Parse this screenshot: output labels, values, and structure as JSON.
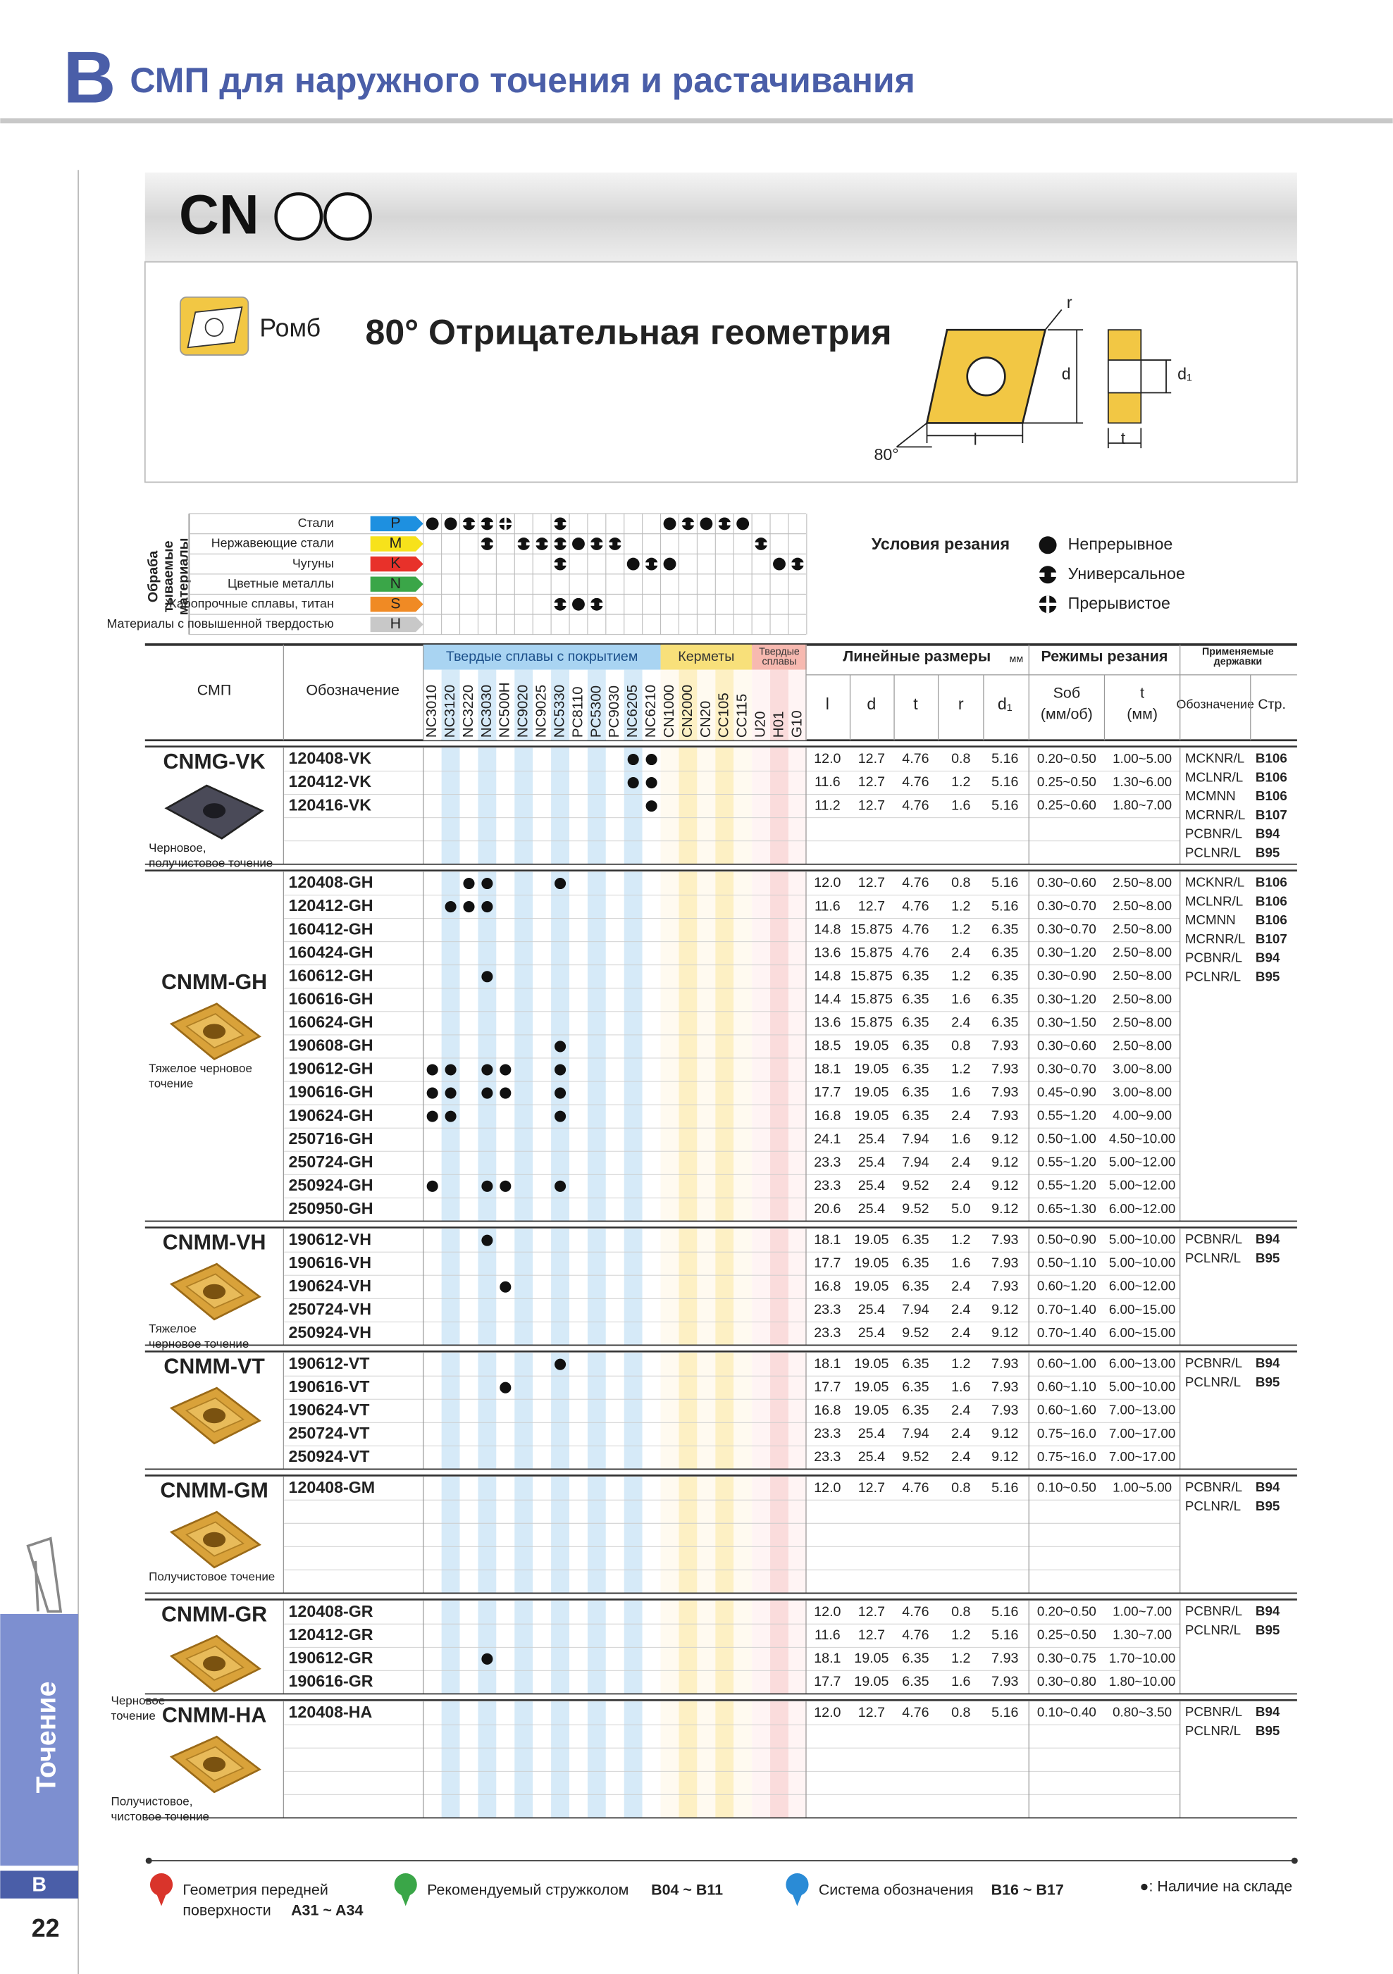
{
  "header": {
    "section": "B",
    "title": "СМП для наружного точения и растачивания"
  },
  "banner": "CN",
  "shape": {
    "name": "Ромб",
    "title": "80° Отрицательная геометрия",
    "labels": {
      "r": "r",
      "d": "d",
      "d1": "d₁",
      "l": "l",
      "t": "t",
      "angle": "80°"
    }
  },
  "materials": {
    "label": [
      "Обраба",
      "тываемые",
      "материалы"
    ],
    "rows": [
      {
        "name": "Стали",
        "code": "P",
        "cells": [
          0,
          0,
          1,
          1,
          2,
          null,
          null,
          1,
          null,
          null,
          null,
          null,
          null,
          0,
          1,
          0,
          1,
          0,
          null,
          null,
          null
        ]
      },
      {
        "name": "Нержавеющие стали",
        "code": "M",
        "cells": [
          null,
          null,
          null,
          1,
          null,
          1,
          1,
          1,
          0,
          1,
          1,
          null,
          null,
          null,
          null,
          null,
          null,
          null,
          1,
          null,
          null
        ]
      },
      {
        "name": "Чугуны",
        "code": "K",
        "cells": [
          null,
          null,
          null,
          null,
          null,
          null,
          null,
          1,
          null,
          null,
          null,
          0,
          1,
          0,
          null,
          null,
          null,
          null,
          null,
          0,
          1
        ]
      },
      {
        "name": "Цветные металлы",
        "code": "N",
        "cells": [
          null,
          null,
          null,
          null,
          null,
          null,
          null,
          null,
          null,
          null,
          null,
          null,
          null,
          null,
          null,
          null,
          null,
          null,
          null,
          null,
          null
        ]
      },
      {
        "name": "Жаропрочные сплавы, титан",
        "code": "S",
        "cells": [
          null,
          null,
          null,
          null,
          null,
          null,
          null,
          1,
          0,
          1,
          null,
          null,
          null,
          null,
          null,
          null,
          null,
          null,
          null,
          null,
          null
        ]
      },
      {
        "name": "Материалы с повышенной твердостью",
        "code": "H",
        "cells": [
          null,
          null,
          null,
          null,
          null,
          null,
          null,
          null,
          null,
          null,
          null,
          null,
          null,
          null,
          null,
          null,
          null,
          null,
          null,
          null,
          null
        ]
      }
    ]
  },
  "conditions": {
    "title": "Условия резания",
    "items": [
      "Непрерывное",
      "Универсальное",
      "Прерывистое"
    ]
  },
  "table": {
    "headers": {
      "insert": "СМП",
      "designation": "Обозначение",
      "linear": "Линейные размеры",
      "unit": "мм",
      "cutting": "Режимы резания",
      "holders": [
        "Применяемые",
        "державки"
      ],
      "dims": [
        "l",
        "d",
        "t",
        "r",
        "d₁"
      ],
      "feed": [
        "Sоб",
        "(мм/об)"
      ],
      "depth": [
        "t",
        "(мм)"
      ],
      "holder_code": "Обозначение",
      "holder_page": "Стр."
    },
    "grade_groups": [
      {
        "label": [
          "Твердые сплавы с покрытием"
        ],
        "grades": [
          "NC3010",
          "NC3120",
          "NC3220",
          "NC3030",
          "NC500H",
          "NC9020",
          "NC9025",
          "NC5330",
          "PC8110",
          "PC5300",
          "PC9030",
          "NC6205",
          "NC6210"
        ]
      },
      {
        "label": [
          "Керметы"
        ],
        "grades": [
          "CN1000",
          "CN2000",
          "CN20",
          "CC105",
          "CC115"
        ]
      },
      {
        "label": [
          "Твердые",
          "сплавы"
        ],
        "grades": [
          "U20",
          "H01",
          "G10"
        ]
      }
    ],
    "groups": [
      {
        "name": "CNMG-VK",
        "caption": [
          "Черновое,",
          "получистовое точение"
        ],
        "rows": [
          {
            "code": "120408-VK",
            "stock": [
              "NC6205",
              "NC6210"
            ],
            "dims": [
              "12.0",
              "12.7",
              "4.76",
              "0.8",
              "5.16"
            ],
            "feed": "0.20~0.50",
            "depth": "1.00~5.00"
          },
          {
            "code": "120412-VK",
            "stock": [
              "NC6205",
              "NC6210"
            ],
            "dims": [
              "11.6",
              "12.7",
              "4.76",
              "1.2",
              "5.16"
            ],
            "feed": "0.25~0.50",
            "depth": "1.30~6.00"
          },
          {
            "code": "120416-VK",
            "stock": [
              "NC6210"
            ],
            "dims": [
              "11.2",
              "12.7",
              "4.76",
              "1.6",
              "5.16"
            ],
            "feed": "0.25~0.60",
            "depth": "1.80~7.00"
          }
        ],
        "holders": [
          {
            "code": "MCKNR/L",
            "page": "B106"
          },
          {
            "code": "MCLNR/L",
            "page": "B106"
          },
          {
            "code": "MCMNN",
            "page": "B106"
          },
          {
            "code": "MCRNR/L",
            "page": "B107"
          },
          {
            "code": "PCBNR/L",
            "page": "B94"
          },
          {
            "code": "PCLNR/L",
            "page": "B95"
          }
        ]
      },
      {
        "name": "CNMM-GH",
        "caption": [
          "Тяжелое черновое",
          "точение"
        ],
        "rows": [
          {
            "code": "120408-GH",
            "stock": [
              "NC3220",
              "NC3030",
              "NC5330"
            ],
            "dims": [
              "12.0",
              "12.7",
              "4.76",
              "0.8",
              "5.16"
            ],
            "feed": "0.30~0.60",
            "depth": "2.50~8.00"
          },
          {
            "code": "120412-GH",
            "stock": [
              "NC3120",
              "NC3220",
              "NC3030"
            ],
            "dims": [
              "11.6",
              "12.7",
              "4.76",
              "1.2",
              "5.16"
            ],
            "feed": "0.30~0.70",
            "depth": "2.50~8.00"
          },
          {
            "code": "160412-GH",
            "stock": [],
            "dims": [
              "14.8",
              "15.875",
              "4.76",
              "1.2",
              "6.35"
            ],
            "feed": "0.30~0.70",
            "depth": "2.50~8.00"
          },
          {
            "code": "160424-GH",
            "stock": [],
            "dims": [
              "13.6",
              "15.875",
              "4.76",
              "2.4",
              "6.35"
            ],
            "feed": "0.30~1.20",
            "depth": "2.50~8.00"
          },
          {
            "code": "160612-GH",
            "stock": [
              "NC3030"
            ],
            "dims": [
              "14.8",
              "15.875",
              "6.35",
              "1.2",
              "6.35"
            ],
            "feed": "0.30~0.90",
            "depth": "2.50~8.00"
          },
          {
            "code": "160616-GH",
            "stock": [],
            "dims": [
              "14.4",
              "15.875",
              "6.35",
              "1.6",
              "6.35"
            ],
            "feed": "0.30~1.20",
            "depth": "2.50~8.00"
          },
          {
            "code": "160624-GH",
            "stock": [],
            "dims": [
              "13.6",
              "15.875",
              "6.35",
              "2.4",
              "6.35"
            ],
            "feed": "0.30~1.50",
            "depth": "2.50~8.00"
          },
          {
            "code": "190608-GH",
            "stock": [
              "NC5330"
            ],
            "dims": [
              "18.5",
              "19.05",
              "6.35",
              "0.8",
              "7.93"
            ],
            "feed": "0.30~0.60",
            "depth": "2.50~8.00"
          },
          {
            "code": "190612-GH",
            "stock": [
              "NC3010",
              "NC3120",
              "NC3030",
              "NC500H",
              "NC5330"
            ],
            "dims": [
              "18.1",
              "19.05",
              "6.35",
              "1.2",
              "7.93"
            ],
            "feed": "0.30~0.70",
            "depth": "3.00~8.00"
          },
          {
            "code": "190616-GH",
            "stock": [
              "NC3010",
              "NC3120",
              "NC3030",
              "NC500H",
              "NC5330"
            ],
            "dims": [
              "17.7",
              "19.05",
              "6.35",
              "1.6",
              "7.93"
            ],
            "feed": "0.45~0.90",
            "depth": "3.00~8.00"
          },
          {
            "code": "190624-GH",
            "stock": [
              "NC3010",
              "NC3120",
              "NC5330"
            ],
            "dims": [
              "16.8",
              "19.05",
              "6.35",
              "2.4",
              "7.93"
            ],
            "feed": "0.55~1.20",
            "depth": "4.00~9.00"
          },
          {
            "code": "250716-GH",
            "stock": [],
            "dims": [
              "24.1",
              "25.4",
              "7.94",
              "1.6",
              "9.12"
            ],
            "feed": "0.50~1.00",
            "depth": "4.50~10.00"
          },
          {
            "code": "250724-GH",
            "stock": [],
            "dims": [
              "23.3",
              "25.4",
              "7.94",
              "2.4",
              "9.12"
            ],
            "feed": "0.55~1.20",
            "depth": "5.00~12.00"
          },
          {
            "code": "250924-GH",
            "stock": [
              "NC3010",
              "NC3030",
              "NC500H",
              "NC5330"
            ],
            "dims": [
              "23.3",
              "25.4",
              "9.52",
              "2.4",
              "9.12"
            ],
            "feed": "0.55~1.20",
            "depth": "5.00~12.00"
          },
          {
            "code": "250950-GH",
            "stock": [],
            "dims": [
              "20.6",
              "25.4",
              "9.52",
              "5.0",
              "9.12"
            ],
            "feed": "0.65~1.30",
            "depth": "6.00~12.00"
          }
        ],
        "holders": [
          {
            "code": "MCKNR/L",
            "page": "B106"
          },
          {
            "code": "MCLNR/L",
            "page": "B106"
          },
          {
            "code": "MCMNN",
            "page": "B106"
          },
          {
            "code": "MCRNR/L",
            "page": "B107"
          },
          {
            "code": "PCBNR/L",
            "page": "B94"
          },
          {
            "code": "PCLNR/L",
            "page": "B95"
          }
        ]
      },
      {
        "name": "CNMM-VH",
        "caption": [
          "Тяжелое",
          "черновое точение"
        ],
        "rows": [
          {
            "code": "190612-VH",
            "stock": [
              "NC3030"
            ],
            "dims": [
              "18.1",
              "19.05",
              "6.35",
              "1.2",
              "7.93"
            ],
            "feed": "0.50~0.90",
            "depth": "5.00~10.00"
          },
          {
            "code": "190616-VH",
            "stock": [],
            "dims": [
              "17.7",
              "19.05",
              "6.35",
              "1.6",
              "7.93"
            ],
            "feed": "0.50~1.10",
            "depth": "5.00~10.00"
          },
          {
            "code": "190624-VH",
            "stock": [
              "NC500H"
            ],
            "dims": [
              "16.8",
              "19.05",
              "6.35",
              "2.4",
              "7.93"
            ],
            "feed": "0.60~1.20",
            "depth": "6.00~12.00"
          },
          {
            "code": "250724-VH",
            "stock": [],
            "dims": [
              "23.3",
              "25.4",
              "7.94",
              "2.4",
              "9.12"
            ],
            "feed": "0.70~1.40",
            "depth": "6.00~15.00"
          },
          {
            "code": "250924-VH",
            "stock": [],
            "dims": [
              "23.3",
              "25.4",
              "9.52",
              "2.4",
              "9.12"
            ],
            "feed": "0.70~1.40",
            "depth": "6.00~15.00"
          }
        ],
        "holders": [
          {
            "code": "PCBNR/L",
            "page": "B94"
          },
          {
            "code": "PCLNR/L",
            "page": "B95"
          }
        ]
      },
      {
        "name": "CNMM-VT",
        "caption": [],
        "rows": [
          {
            "code": "190612-VT",
            "stock": [
              "NC5330"
            ],
            "dims": [
              "18.1",
              "19.05",
              "6.35",
              "1.2",
              "7.93"
            ],
            "feed": "0.60~1.00",
            "depth": "6.00~13.00"
          },
          {
            "code": "190616-VT",
            "stock": [
              "NC500H"
            ],
            "dims": [
              "17.7",
              "19.05",
              "6.35",
              "1.6",
              "7.93"
            ],
            "feed": "0.60~1.10",
            "depth": "5.00~10.00"
          },
          {
            "code": "190624-VT",
            "stock": [],
            "dims": [
              "16.8",
              "19.05",
              "6.35",
              "2.4",
              "7.93"
            ],
            "feed": "0.60~1.60",
            "depth": "7.00~13.00"
          },
          {
            "code": "250724-VT",
            "stock": [],
            "dims": [
              "23.3",
              "25.4",
              "7.94",
              "2.4",
              "9.12"
            ],
            "feed": "0.75~16.0",
            "depth": "7.00~17.00"
          },
          {
            "code": "250924-VT",
            "stock": [],
            "dims": [
              "23.3",
              "25.4",
              "9.52",
              "2.4",
              "9.12"
            ],
            "feed": "0.75~16.0",
            "depth": "7.00~17.00"
          }
        ],
        "holders": [
          {
            "code": "PCBNR/L",
            "page": "B94"
          },
          {
            "code": "PCLNR/L",
            "page": "B95"
          }
        ]
      },
      {
        "name": "CNMM-GM",
        "caption": [
          "Получистовое точение"
        ],
        "rows": [
          {
            "code": "120408-GM",
            "stock": [],
            "dims": [
              "12.0",
              "12.7",
              "4.76",
              "0.8",
              "5.16"
            ],
            "feed": "0.10~0.50",
            "depth": "1.00~5.00"
          }
        ],
        "holders": [
          {
            "code": "PCBNR/L",
            "page": "B94"
          },
          {
            "code": "PCLNR/L",
            "page": "B95"
          }
        ]
      },
      {
        "name": "CNMM-GR",
        "caption": [
          "Черновое",
          "точение"
        ],
        "rows": [
          {
            "code": "120408-GR",
            "stock": [],
            "dims": [
              "12.0",
              "12.7",
              "4.76",
              "0.8",
              "5.16"
            ],
            "feed": "0.20~0.50",
            "depth": "1.00~7.00"
          },
          {
            "code": "120412-GR",
            "stock": [],
            "dims": [
              "11.6",
              "12.7",
              "4.76",
              "1.2",
              "5.16"
            ],
            "feed": "0.25~0.50",
            "depth": "1.30~7.00"
          },
          {
            "code": "190612-GR",
            "stock": [
              "NC3030"
            ],
            "dims": [
              "18.1",
              "19.05",
              "6.35",
              "1.2",
              "7.93"
            ],
            "feed": "0.30~0.75",
            "depth": "1.70~10.00"
          },
          {
            "code": "190616-GR",
            "stock": [],
            "dims": [
              "17.7",
              "19.05",
              "6.35",
              "1.6",
              "7.93"
            ],
            "feed": "0.30~0.80",
            "depth": "1.80~10.00"
          }
        ],
        "holders": [
          {
            "code": "PCBNR/L",
            "page": "B94"
          },
          {
            "code": "PCLNR/L",
            "page": "B95"
          }
        ]
      },
      {
        "name": "CNMM-HA",
        "caption": [
          "Получистовое,",
          "чистовое точение"
        ],
        "rows": [
          {
            "code": "120408-HA",
            "stock": [],
            "dims": [
              "12.0",
              "12.7",
              "4.76",
              "0.8",
              "5.16"
            ],
            "feed": "0.10~0.40",
            "depth": "0.80~3.50"
          }
        ],
        "holders": [
          {
            "code": "PCBNR/L",
            "page": "B94"
          },
          {
            "code": "PCLNR/L",
            "page": "B95"
          }
        ]
      }
    ]
  },
  "footer": {
    "items": [
      {
        "title": [
          "Геометрия передней",
          "поверхности"
        ],
        "ref": "A31 ~ A34"
      },
      {
        "title": [
          "Рекомендуемый стружколом"
        ],
        "ref": "B04 ~ B11"
      },
      {
        "title": [
          "Система обозначения"
        ],
        "ref": "B16 ~ B17"
      }
    ],
    "note": "●: Наличие на складе"
  },
  "page": {
    "side_label": "Точение",
    "section": "B",
    "number": "22"
  }
}
